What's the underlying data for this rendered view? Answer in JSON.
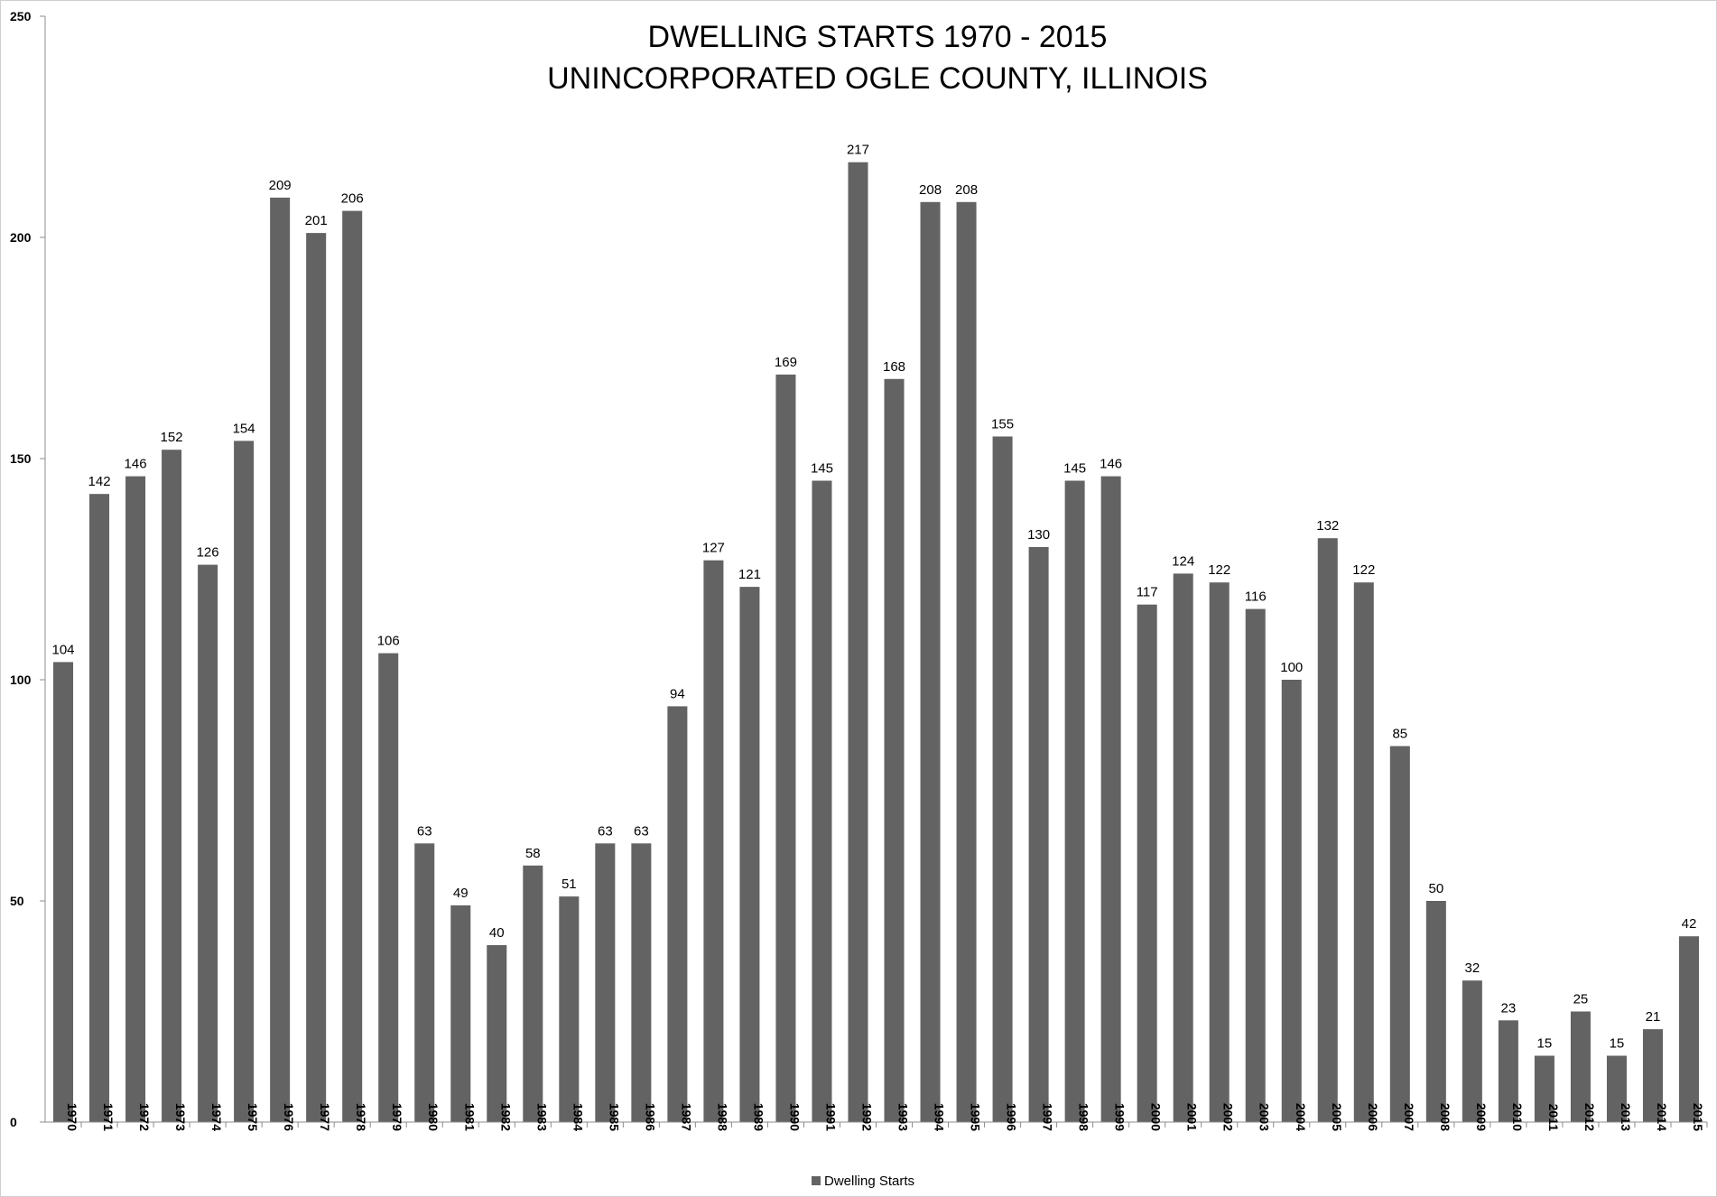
{
  "chart_data": {
    "type": "bar",
    "title_lines": [
      "DWELLING STARTS 1970 - 2015",
      "UNINCORPORATED OGLE COUNTY, ILLINOIS"
    ],
    "xlabel": "",
    "ylabel": "",
    "ylim": [
      0,
      250
    ],
    "yticks": [
      0,
      50,
      100,
      150,
      200,
      250
    ],
    "grid": false,
    "legend_position": "bottom",
    "bar_color": "#636363",
    "categories": [
      "1970",
      "1971",
      "1972",
      "1973",
      "1974",
      "1975",
      "1976",
      "1977",
      "1978",
      "1979",
      "1980",
      "1981",
      "1982",
      "1983",
      "1984",
      "1985",
      "1986",
      "1987",
      "1988",
      "1989",
      "1990",
      "1991",
      "1992",
      "1993",
      "1994",
      "1995",
      "1996",
      "1997",
      "1998",
      "1999",
      "2000",
      "2001",
      "2002",
      "2003",
      "2004",
      "2005",
      "2006",
      "2007",
      "2008",
      "2009",
      "2010",
      "2011",
      "2012",
      "2013",
      "2014",
      "2015"
    ],
    "series": [
      {
        "name": "Dwelling Starts",
        "values": [
          104,
          142,
          146,
          152,
          126,
          154,
          209,
          201,
          206,
          106,
          63,
          49,
          40,
          58,
          51,
          63,
          63,
          94,
          127,
          121,
          169,
          145,
          217,
          168,
          208,
          208,
          155,
          130,
          145,
          146,
          117,
          124,
          122,
          116,
          100,
          132,
          122,
          85,
          50,
          32,
          23,
          15,
          25,
          15,
          21,
          42
        ]
      }
    ]
  }
}
